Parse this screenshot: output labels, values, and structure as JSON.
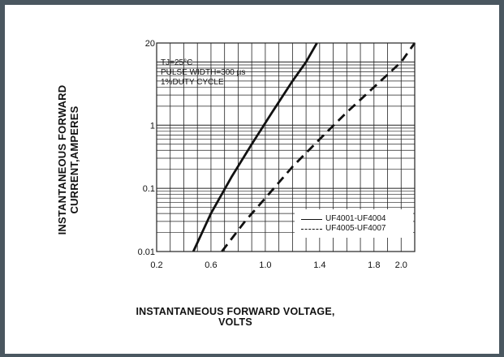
{
  "chart_data": {
    "type": "line",
    "ylabel": "INSTANTANEOUS FORWARD CURRENT,AMPERES",
    "xlabel": "INSTANTANEOUS FORWARD VOLTAGE, VOLTS",
    "ylabel_lines": [
      "INSTANTANEOUS FORWARD",
      "CURRENT,AMPERES"
    ],
    "xlabel_lines": [
      "INSTANTANEOUS FORWARD VOLTAGE,",
      "VOLTS"
    ],
    "annotations": [
      "TJ=25°C",
      "PULSE WIDTH=300 µs",
      "1%DUTY CYCLE"
    ],
    "xlim": [
      0.2,
      2.1
    ],
    "ylim": [
      0.01,
      20
    ],
    "yscale": "log",
    "grid": true,
    "x_ticks": [
      "0.2",
      "0.6",
      "1.0",
      "1.4",
      "1.8",
      "2.0"
    ],
    "x_tick_values": [
      0.2,
      0.6,
      1.0,
      1.4,
      1.8,
      2.0
    ],
    "y_ticks": [
      "0.01",
      "0.1",
      "1",
      "20"
    ],
    "y_tick_values": [
      0.01,
      0.1,
      1,
      20
    ],
    "legend_position": "bottom-right",
    "series": [
      {
        "name": "UF4001-UF4004",
        "style": "solid",
        "x": [
          0.47,
          0.6,
          0.75,
          0.9,
          1.05,
          1.2,
          1.3,
          1.38
        ],
        "y": [
          0.01,
          0.04,
          0.15,
          0.5,
          1.6,
          5,
          10,
          20
        ]
      },
      {
        "name": "UF4005-UF4007",
        "style": "dashed",
        "x": [
          0.68,
          0.85,
          1.0,
          1.2,
          1.4,
          1.6,
          1.8,
          2.0,
          2.1
        ],
        "y": [
          0.01,
          0.03,
          0.07,
          0.22,
          0.6,
          1.6,
          4,
          10,
          20
        ]
      }
    ]
  }
}
